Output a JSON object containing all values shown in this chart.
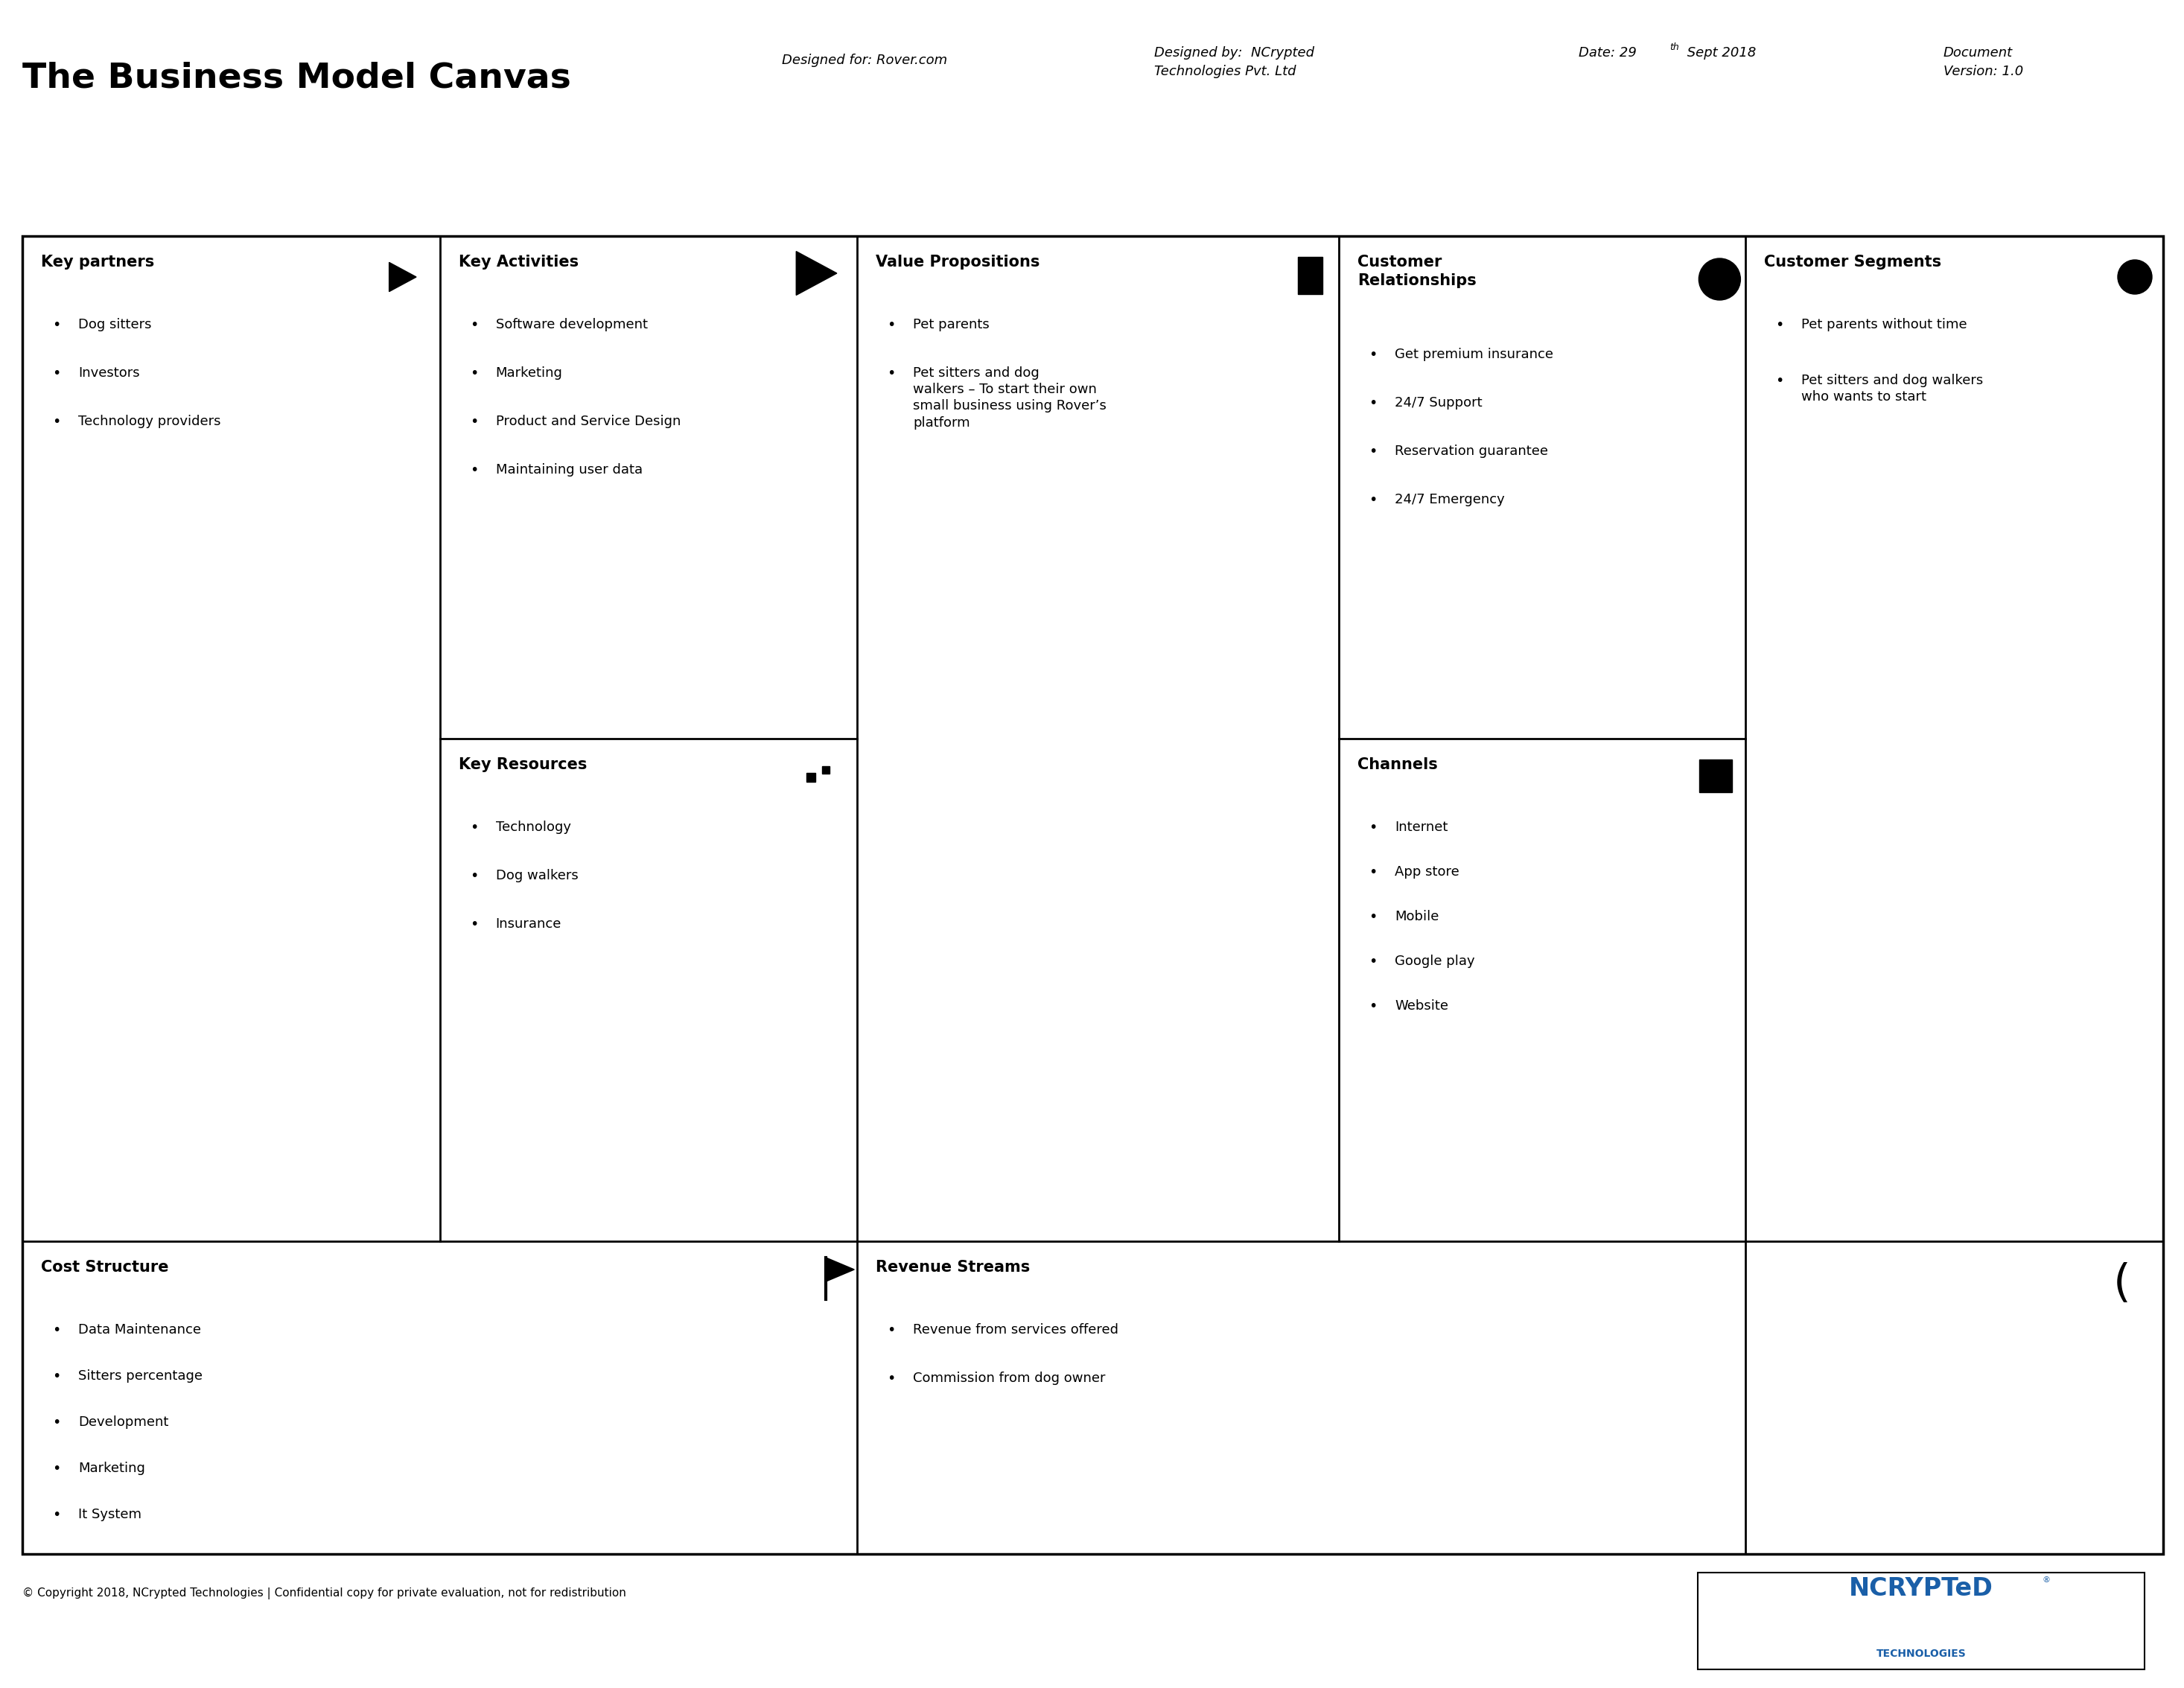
{
  "title": "The Business Model Canvas",
  "header_designed_for": "Designed for: Rover.com",
  "header_designed_by": "Designed by:  NCrypted\nTechnologies Pvt. Ltd",
  "header_date": "Date: 29",
  "header_date_sup": "th",
  "header_date_rest": " Sept 2018",
  "header_document": "Document\nVersion: 1.0",
  "cells": {
    "key_partners": {
      "title": "Key partners",
      "items": [
        "Dog sitters",
        "Investors",
        "Technology providers"
      ]
    },
    "key_activities": {
      "title": "Key Activities",
      "items": [
        "Software development",
        "Marketing",
        "Product and Service Design",
        "Maintaining user data"
      ]
    },
    "value_propositions": {
      "title": "Value Propositions",
      "items": [
        "Pet parents",
        "Pet sitters and dog\nwalkers – To start their own\nsmall business using Rover’s\nplatform"
      ]
    },
    "customer_relationships": {
      "title": "Customer\nRelationships",
      "items": [
        "Get premium insurance",
        "24/7 Support",
        "Reservation guarantee",
        "24/7 Emergency"
      ]
    },
    "customer_segments": {
      "title": "Customer Segments",
      "items": [
        "Pet parents without time",
        "Pet sitters and dog walkers\nwho wants to start"
      ]
    },
    "key_resources": {
      "title": "Key Resources",
      "items": [
        "Technology",
        "Dog walkers",
        "Insurance"
      ]
    },
    "channels": {
      "title": "Channels",
      "items": [
        "Internet",
        "App store",
        "Mobile",
        "Google play",
        "Website"
      ]
    },
    "cost_structure": {
      "title": "Cost Structure",
      "items": [
        "Data Maintenance",
        "Sitters percentage",
        "Development",
        "Marketing",
        "It System"
      ]
    },
    "revenue_streams": {
      "title": "Revenue Streams",
      "items": [
        "Revenue from services offered",
        "Commission from dog owner"
      ]
    }
  },
  "footer_copyright": "© Copyright 2018, NCrypted Technologies | Confidential copy for private evaluation, not for redistribution",
  "logo_text1": "NCRYPTeD",
  "logo_text2": "TECHNOLOGIES",
  "logo_color": "#1a5fa8",
  "bg_color": "#ffffff",
  "border_color": "#000000",
  "text_color": "#000000"
}
